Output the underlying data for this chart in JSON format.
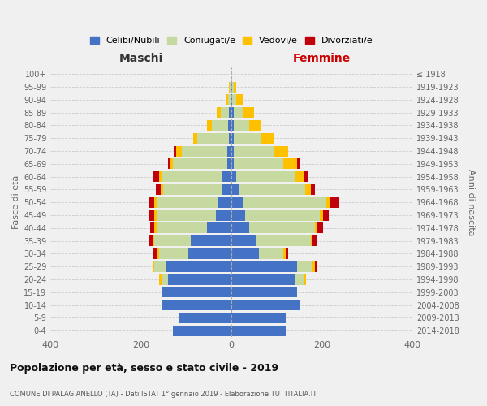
{
  "age_groups": [
    "0-4",
    "5-9",
    "10-14",
    "15-19",
    "20-24",
    "25-29",
    "30-34",
    "35-39",
    "40-44",
    "45-49",
    "50-54",
    "55-59",
    "60-64",
    "65-69",
    "70-74",
    "75-79",
    "80-84",
    "85-89",
    "90-94",
    "95-99",
    "100+"
  ],
  "birth_years": [
    "2014-2018",
    "2009-2013",
    "2004-2008",
    "1999-2003",
    "1994-1998",
    "1989-1993",
    "1984-1988",
    "1979-1983",
    "1974-1978",
    "1969-1973",
    "1964-1968",
    "1959-1963",
    "1954-1958",
    "1949-1953",
    "1944-1948",
    "1939-1943",
    "1934-1938",
    "1929-1933",
    "1924-1928",
    "1919-1923",
    "≤ 1918"
  ],
  "male": {
    "celibi": [
      130,
      115,
      155,
      155,
      140,
      145,
      95,
      90,
      55,
      35,
      30,
      22,
      20,
      10,
      10,
      5,
      8,
      5,
      2,
      2,
      0
    ],
    "coniugati": [
      0,
      0,
      0,
      0,
      15,
      25,
      65,
      80,
      110,
      130,
      135,
      130,
      135,
      120,
      100,
      70,
      35,
      18,
      5,
      2,
      0
    ],
    "vedovi": [
      0,
      0,
      0,
      0,
      5,
      5,
      5,
      5,
      5,
      5,
      5,
      5,
      5,
      5,
      12,
      10,
      12,
      10,
      5,
      2,
      0
    ],
    "divorziati": [
      0,
      0,
      0,
      0,
      0,
      0,
      8,
      8,
      10,
      12,
      12,
      10,
      15,
      5,
      5,
      0,
      0,
      0,
      0,
      0,
      0
    ]
  },
  "female": {
    "nubili": [
      120,
      120,
      150,
      145,
      140,
      145,
      60,
      55,
      40,
      30,
      25,
      18,
      10,
      5,
      5,
      5,
      5,
      5,
      2,
      2,
      0
    ],
    "coniugate": [
      0,
      0,
      0,
      0,
      20,
      35,
      55,
      120,
      145,
      165,
      185,
      145,
      130,
      110,
      90,
      60,
      35,
      20,
      8,
      3,
      0
    ],
    "vedove": [
      0,
      0,
      0,
      0,
      5,
      5,
      5,
      5,
      5,
      8,
      8,
      12,
      20,
      30,
      30,
      30,
      25,
      25,
      15,
      5,
      0
    ],
    "divorziate": [
      0,
      0,
      0,
      0,
      0,
      5,
      5,
      8,
      12,
      12,
      20,
      10,
      10,
      5,
      0,
      0,
      0,
      0,
      0,
      0,
      0
    ]
  },
  "colors": {
    "celibi": "#4472c4",
    "coniugati": "#c5d9a0",
    "vedovi": "#ffc000",
    "divorziati": "#c0000a"
  },
  "title": "Popolazione per età, sesso e stato civile - 2019",
  "subtitle": "COMUNE DI PALAGIANELLO (TA) - Dati ISTAT 1° gennaio 2019 - Elaborazione TUTTITALIA.IT",
  "xlabel_left": "Maschi",
  "xlabel_right": "Femmine",
  "ylabel_left": "Fasce di età",
  "ylabel_right": "Anni di nascita",
  "xlim": 400,
  "legend_labels": [
    "Celibi/Nubili",
    "Coniugati/e",
    "Vedovi/e",
    "Divorziati/e"
  ],
  "background_color": "#f0f0f0"
}
